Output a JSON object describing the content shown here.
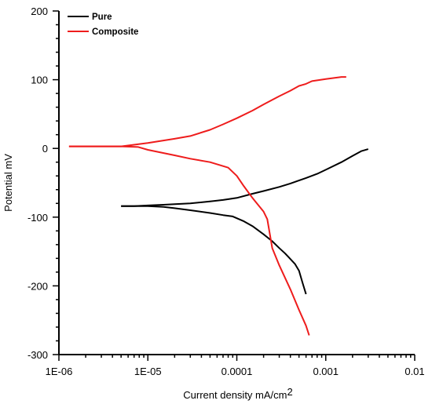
{
  "chart_data": {
    "type": "line",
    "title": "",
    "xlabel": "Current density mA/cm",
    "xlabel_superscript": "2",
    "ylabel": "Potential mV",
    "x_scale": "log",
    "xlim": [
      1e-06,
      0.01
    ],
    "ylim": [
      -300,
      200
    ],
    "x_ticks": [
      1e-06,
      1e-05,
      0.0001,
      0.001,
      0.01
    ],
    "x_tick_labels": [
      "1E-06",
      "1E-05",
      "0.0001",
      "0.001",
      "0.01"
    ],
    "y_ticks": [
      -300,
      -200,
      -100,
      0,
      100,
      200
    ],
    "y_tick_labels": [
      "-300",
      "-200",
      "-100",
      "0",
      "100",
      "200"
    ],
    "grid": false,
    "legend_position": "top-left",
    "series": [
      {
        "name": "Pure",
        "color": "#000000",
        "branches": [
          {
            "x": [
              5e-06,
              7e-06,
              1e-05,
              1.5e-05,
              2e-05,
              3e-05,
              5e-05,
              7e-05,
              0.0001,
              0.00015,
              0.0002,
              0.0003,
              0.0004,
              0.0006,
              0.0008,
              0.001,
              0.0015,
              0.002,
              0.0025,
              0.003
            ],
            "y": [
              -84,
              -84,
              -83,
              -82,
              -81,
              -80,
              -77,
              -75,
              -72,
              -66,
              -62,
              -56,
              -51,
              -43,
              -37,
              -31,
              -20,
              -11,
              -4,
              -1
            ]
          },
          {
            "x": [
              5e-06,
              1e-05,
              1.5e-05,
              2e-05,
              3e-05,
              5e-05,
              7e-05,
              9e-05,
              0.00012,
              0.00015,
              0.0002,
              0.00025,
              0.0003,
              0.00035,
              0.0004,
              0.00045,
              0.0005,
              0.00055,
              0.0006
            ],
            "y": [
              -84,
              -84,
              -85,
              -87,
              -90,
              -94,
              -97,
              -99,
              -106,
              -113,
              -125,
              -135,
              -145,
              -153,
              -161,
              -168,
              -178,
              -196,
              -212
            ]
          }
        ]
      },
      {
        "name": "Composite",
        "color": "#ee1c1c",
        "branches": [
          {
            "x": [
              1.3e-06,
              2e-06,
              5e-06,
              1e-05,
              2e-05,
              3e-05,
              5e-05,
              7e-05,
              0.0001,
              0.00015,
              0.0002,
              0.0003,
              0.0004,
              0.0005,
              0.0006,
              0.0007,
              0.001,
              0.0015,
              0.0017
            ],
            "y": [
              3,
              3,
              3,
              8,
              14,
              18,
              27,
              35,
              44,
              55,
              64,
              76,
              84,
              91,
              94,
              98,
              101,
              104,
              104
            ]
          },
          {
            "x": [
              1.3e-06,
              2e-06,
              5e-06,
              7.8e-06,
              1e-05,
              2e-05,
              3e-05,
              5e-05,
              8e-05,
              0.0001,
              0.00012,
              0.00015,
              0.0002,
              0.00022,
              0.00025,
              0.0003,
              0.0004,
              0.0005,
              0.0006,
              0.00065
            ],
            "y": [
              3,
              3,
              3,
              2,
              -2,
              -10,
              -15,
              -20,
              -28,
              -40,
              -55,
              -72,
              -92,
              -103,
              -145,
              -170,
              -205,
              -235,
              -258,
              -272
            ]
          }
        ]
      }
    ]
  }
}
